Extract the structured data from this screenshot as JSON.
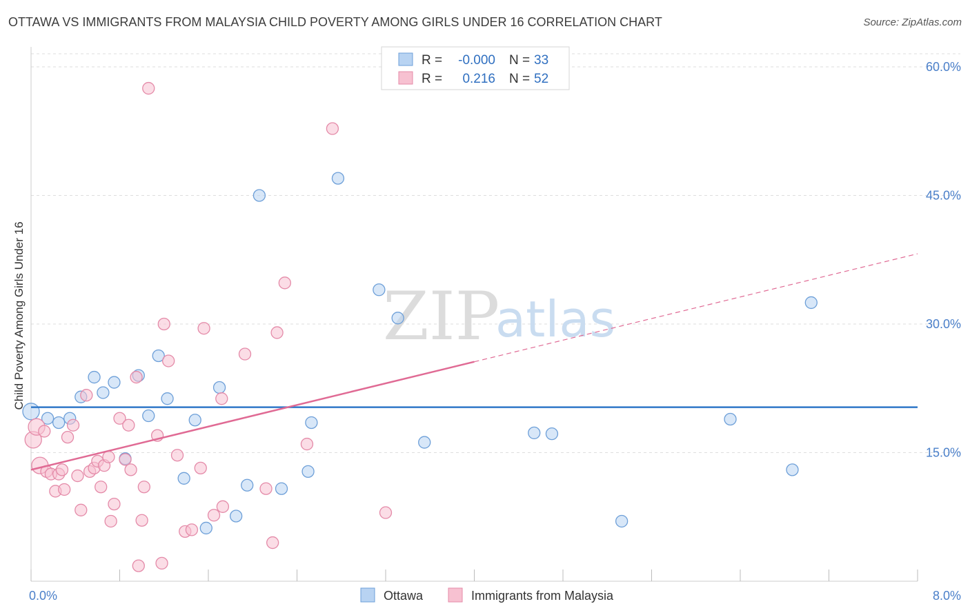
{
  "title": "OTTAWA VS IMMIGRANTS FROM MALAYSIA CHILD POVERTY AMONG GIRLS UNDER 16 CORRELATION CHART",
  "source": "Source: ZipAtlas.com",
  "watermark": {
    "zip": "ZIP",
    "atlas": "atlas"
  },
  "colors": {
    "ottawa_fill": "#b8d3f2",
    "ottawa_stroke": "#6d9fd8",
    "ottawa_line": "#2f77c8",
    "malaysia_fill": "#f7c1d1",
    "malaysia_stroke": "#e48aa8",
    "malaysia_line": "#e06a94",
    "grid": "#dddddd",
    "tick_text": "#4a7fc9"
  },
  "legend_top": [
    {
      "r_label": "R =",
      "r_value": "-0.000",
      "n_label": "N =",
      "n_value": "33"
    },
    {
      "r_label": "R =",
      "r_value": "0.216",
      "n_label": "N =",
      "n_value": "52"
    }
  ],
  "chart_data": {
    "type": "scatter",
    "xlabel": "",
    "ylabel": "Child Poverty Among Girls Under 16",
    "xlim": [
      0,
      8
    ],
    "ylim": [
      0,
      60
    ],
    "x_tick_labels": [
      "0.0%",
      "8.0%"
    ],
    "y_ticks": [
      15,
      30,
      45,
      60
    ],
    "y_tick_labels": [
      "15.0%",
      "30.0%",
      "45.0%",
      "60.0%"
    ],
    "series": [
      {
        "name": "Ottawa",
        "points": [
          [
            0.0,
            19.8
          ],
          [
            0.15,
            19.0
          ],
          [
            0.25,
            18.5
          ],
          [
            0.35,
            19.0
          ],
          [
            0.45,
            21.5
          ],
          [
            0.57,
            23.8
          ],
          [
            0.65,
            22.0
          ],
          [
            0.75,
            23.2
          ],
          [
            0.85,
            14.3
          ],
          [
            0.97,
            24.0
          ],
          [
            1.06,
            19.3
          ],
          [
            1.15,
            26.3
          ],
          [
            1.23,
            21.3
          ],
          [
            1.38,
            12.0
          ],
          [
            1.48,
            18.8
          ],
          [
            1.58,
            6.2
          ],
          [
            1.7,
            22.6
          ],
          [
            1.85,
            7.6
          ],
          [
            1.95,
            11.2
          ],
          [
            2.06,
            45.0
          ],
          [
            2.26,
            10.8
          ],
          [
            2.5,
            12.8
          ],
          [
            2.53,
            18.5
          ],
          [
            2.77,
            47.0
          ],
          [
            3.14,
            34.0
          ],
          [
            3.31,
            30.7
          ],
          [
            3.55,
            16.2
          ],
          [
            4.54,
            17.3
          ],
          [
            4.7,
            17.2
          ],
          [
            5.33,
            7.0
          ],
          [
            6.31,
            18.9
          ],
          [
            6.87,
            13.0
          ],
          [
            7.04,
            32.5
          ]
        ],
        "trend": {
          "x": [
            0,
            8
          ],
          "y": [
            20.3,
            20.3
          ],
          "dashed_from": null
        }
      },
      {
        "name": "Immigrants from Malaysia",
        "points": [
          [
            0.02,
            16.5
          ],
          [
            0.05,
            18.0
          ],
          [
            0.08,
            13.5
          ],
          [
            0.12,
            17.5
          ],
          [
            0.14,
            12.8
          ],
          [
            0.18,
            12.5
          ],
          [
            0.22,
            10.5
          ],
          [
            0.25,
            12.5
          ],
          [
            0.28,
            13.0
          ],
          [
            0.3,
            10.7
          ],
          [
            0.33,
            16.8
          ],
          [
            0.38,
            18.2
          ],
          [
            0.42,
            12.3
          ],
          [
            0.45,
            8.3
          ],
          [
            0.5,
            21.7
          ],
          [
            0.53,
            12.8
          ],
          [
            0.57,
            13.2
          ],
          [
            0.6,
            14.0
          ],
          [
            0.63,
            11.0
          ],
          [
            0.66,
            13.5
          ],
          [
            0.7,
            14.5
          ],
          [
            0.72,
            7.0
          ],
          [
            0.75,
            9.0
          ],
          [
            0.8,
            19.0
          ],
          [
            0.85,
            14.2
          ],
          [
            0.88,
            18.2
          ],
          [
            0.9,
            13.0
          ],
          [
            0.95,
            23.8
          ],
          [
            0.97,
            1.8
          ],
          [
            1.0,
            7.1
          ],
          [
            1.02,
            11.0
          ],
          [
            1.06,
            57.5
          ],
          [
            1.14,
            17.0
          ],
          [
            1.18,
            2.1
          ],
          [
            1.2,
            30.0
          ],
          [
            1.24,
            25.7
          ],
          [
            1.32,
            14.7
          ],
          [
            1.39,
            5.8
          ],
          [
            1.45,
            6.0
          ],
          [
            1.53,
            13.2
          ],
          [
            1.56,
            29.5
          ],
          [
            1.65,
            7.7
          ],
          [
            1.72,
            21.3
          ],
          [
            1.73,
            8.7
          ],
          [
            1.93,
            26.5
          ],
          [
            2.12,
            10.8
          ],
          [
            2.18,
            4.5
          ],
          [
            2.22,
            29.0
          ],
          [
            2.29,
            34.8
          ],
          [
            2.49,
            16.0
          ],
          [
            2.72,
            52.8
          ],
          [
            3.2,
            8.0
          ]
        ],
        "trend": {
          "x": [
            0,
            8
          ],
          "y": [
            13.0,
            38.2
          ],
          "dashed_from": 4.0
        }
      }
    ]
  }
}
